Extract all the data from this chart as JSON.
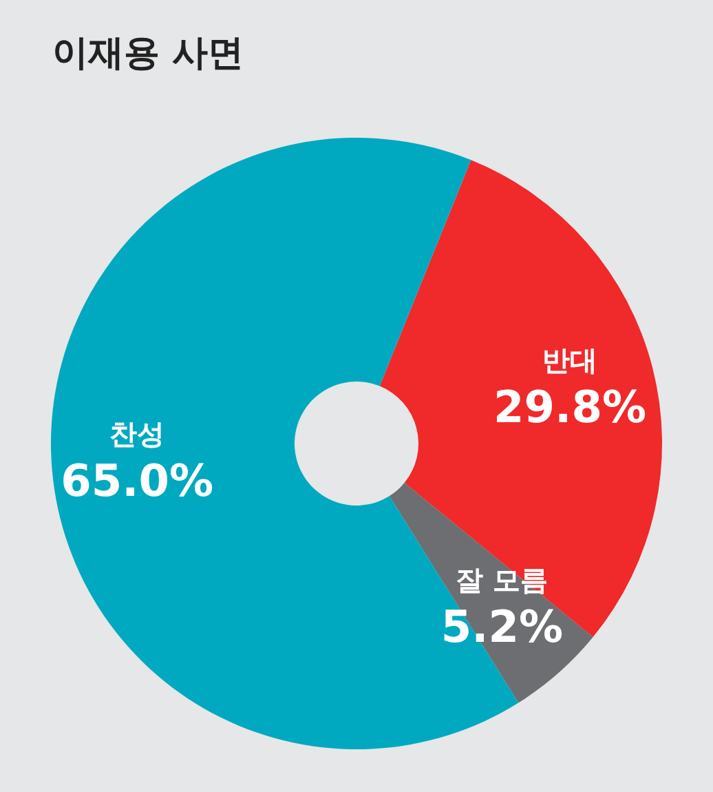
{
  "chart_data": {
    "type": "donut",
    "title": "이재용 사면",
    "categories": [
      "반대",
      "잘 모름",
      "찬성"
    ],
    "values": [
      29.8,
      5.2,
      65.0
    ],
    "colors": [
      "#f0292b",
      "#6d6e71",
      "#00a9bf"
    ],
    "value_labels": [
      "29.8%",
      "5.2%",
      "65.0%"
    ],
    "legend": false
  }
}
